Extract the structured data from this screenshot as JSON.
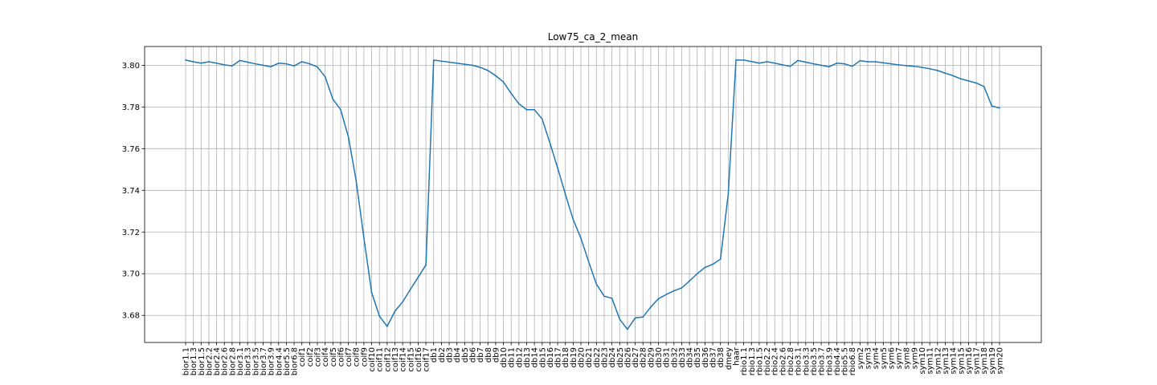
{
  "chart_data": {
    "type": "line",
    "title": "Low75_ca_2_mean",
    "xlabel": "",
    "ylabel": "",
    "ylim": [
      3.667,
      3.809
    ],
    "yticks": [
      "3.68",
      "3.70",
      "3.72",
      "3.74",
      "3.76",
      "3.78",
      "3.80"
    ],
    "grid": true,
    "series_color": "#1f77b4",
    "categories": [
      "bior1.1",
      "bior1.3",
      "bior1.5",
      "bior2.2",
      "bior2.4",
      "bior2.6",
      "bior2.8",
      "bior3.1",
      "bior3.3",
      "bior3.5",
      "bior3.7",
      "bior3.9",
      "bior4.4",
      "bior5.5",
      "bior6.8",
      "coif1",
      "coif2",
      "coif3",
      "coif4",
      "coif5",
      "coif6",
      "coif7",
      "coif8",
      "coif9",
      "coif10",
      "coif11",
      "coif12",
      "coif13",
      "coif14",
      "coif15",
      "coif16",
      "coif17",
      "db1",
      "db2",
      "db3",
      "db4",
      "db5",
      "db6",
      "db7",
      "db8",
      "db9",
      "db10",
      "db11",
      "db12",
      "db13",
      "db14",
      "db15",
      "db16",
      "db17",
      "db18",
      "db19",
      "db20",
      "db21",
      "db22",
      "db23",
      "db24",
      "db25",
      "db26",
      "db27",
      "db28",
      "db29",
      "db30",
      "db31",
      "db32",
      "db33",
      "db34",
      "db35",
      "db36",
      "db37",
      "db38",
      "dmey",
      "haar",
      "rbio1.1",
      "rbio1.3",
      "rbio1.5",
      "rbio2.2",
      "rbio2.4",
      "rbio2.6",
      "rbio2.8",
      "rbio3.1",
      "rbio3.3",
      "rbio3.5",
      "rbio3.7",
      "rbio3.9",
      "rbio4.4",
      "rbio5.5",
      "rbio6.8",
      "sym2",
      "sym3",
      "sym4",
      "sym5",
      "sym6",
      "sym7",
      "sym8",
      "sym9",
      "sym10",
      "sym11",
      "sym12",
      "sym13",
      "sym14",
      "sym15",
      "sym16",
      "sym17",
      "sym18",
      "sym19",
      "sym20"
    ],
    "values": [
      3.8025,
      3.8017,
      3.801,
      3.8017,
      3.801,
      3.8002,
      3.7997,
      3.8023,
      3.8015,
      3.8007,
      3.8,
      3.7993,
      3.801,
      3.8007,
      3.7997,
      3.8017,
      3.8007,
      3.7992,
      3.7945,
      3.7837,
      3.7787,
      3.7657,
      3.7447,
      3.7172,
      3.691,
      3.6797,
      3.6747,
      3.682,
      3.6865,
      3.6925,
      3.6983,
      3.7042,
      3.8025,
      3.802,
      3.8015,
      3.801,
      3.8005,
      3.8,
      3.799,
      3.7975,
      3.795,
      3.792,
      3.7865,
      3.7815,
      3.7787,
      3.7787,
      3.7742,
      3.7627,
      3.7507,
      3.738,
      3.726,
      3.717,
      3.7057,
      3.695,
      3.6892,
      3.6882,
      3.6782,
      3.6733,
      3.6788,
      3.6792,
      3.684,
      3.688,
      3.69,
      3.6918,
      3.6932,
      3.6965,
      3.7,
      3.703,
      3.7045,
      3.707,
      3.738,
      3.8025,
      3.8025,
      3.8018,
      3.801,
      3.8017,
      3.801,
      3.8002,
      3.7995,
      3.8023,
      3.8015,
      3.8007,
      3.8,
      3.7993,
      3.801,
      3.8007,
      3.7995,
      3.8022,
      3.8017,
      3.8017,
      3.8012,
      3.8007,
      3.8002,
      3.7998,
      3.7995,
      3.799,
      3.7983,
      3.7975,
      3.7962,
      3.795,
      3.7935,
      3.7925,
      3.7915,
      3.7898,
      3.7805,
      3.7795
    ]
  }
}
